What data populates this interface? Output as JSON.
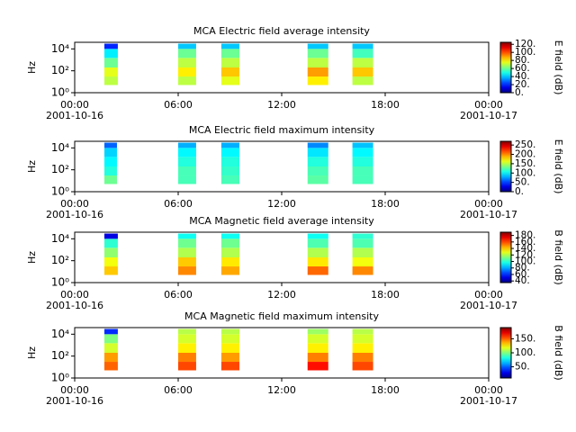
{
  "chart_data": [
    {
      "type": "spectrogram",
      "title": "MCA  Electric field average intensity",
      "ylabel": "Hz",
      "log_y": true,
      "xlim": [
        0,
        24
      ],
      "xticks": [
        {
          "value": 0,
          "label": "00:00"
        },
        {
          "value": 6,
          "label": "06:00"
        },
        {
          "value": 12,
          "label": "12:00"
        },
        {
          "value": 18,
          "label": "18:00"
        },
        {
          "value": 24,
          "label": "00:00"
        }
      ],
      "xtick_dates": [
        {
          "value": 0,
          "label": "2001-10-16"
        },
        {
          "value": 24,
          "label": "2001-10-17"
        }
      ],
      "ylim": [
        1,
        40000
      ],
      "yticks": [
        {
          "value": 1,
          "label": "10⁰"
        },
        {
          "value": 100,
          "label": "10²"
        },
        {
          "value": 10000,
          "label": "10⁴"
        }
      ],
      "bands": [
        5,
        30,
        200,
        1500,
        10000,
        30000
      ],
      "blocks": [
        {
          "start": 1.72,
          "end": 2.5,
          "values": [
            70,
            75,
            60,
            45,
            20
          ]
        },
        {
          "start": 6.0,
          "end": 7.04,
          "values": [
            70,
            80,
            70,
            60,
            40
          ]
        },
        {
          "start": 8.5,
          "end": 9.55,
          "values": [
            75,
            85,
            70,
            60,
            40
          ]
        },
        {
          "start": 13.5,
          "end": 14.7,
          "values": [
            80,
            90,
            70,
            60,
            40
          ]
        },
        {
          "start": 16.1,
          "end": 17.3,
          "values": [
            70,
            85,
            70,
            55,
            40
          ]
        }
      ],
      "clim": [
        0,
        125
      ],
      "cticks": [
        {
          "value": 0,
          "label": "0."
        },
        {
          "value": 20,
          "label": "20."
        },
        {
          "value": 40,
          "label": "40."
        },
        {
          "value": 60,
          "label": "60."
        },
        {
          "value": 80,
          "label": "80."
        },
        {
          "value": 100,
          "label": "100."
        },
        {
          "value": 120,
          "label": "120."
        }
      ],
      "colorbar_label": "E field (dB)"
    },
    {
      "type": "spectrogram",
      "title": "MCA  Electric field maximum intensity",
      "ylabel": "Hz",
      "log_y": true,
      "xlim": [
        0,
        24
      ],
      "xticks": [
        {
          "value": 0,
          "label": "00:00"
        },
        {
          "value": 6,
          "label": "06:00"
        },
        {
          "value": 12,
          "label": "12:00"
        },
        {
          "value": 18,
          "label": "18:00"
        },
        {
          "value": 24,
          "label": "00:00"
        }
      ],
      "xtick_dates": [
        {
          "value": 0,
          "label": "2001-10-16"
        },
        {
          "value": 24,
          "label": "2001-10-17"
        }
      ],
      "ylim": [
        1,
        40000
      ],
      "yticks": [
        {
          "value": 1,
          "label": "10⁰"
        },
        {
          "value": 100,
          "label": "10²"
        },
        {
          "value": 10000,
          "label": "10⁴"
        }
      ],
      "bands": [
        5,
        30,
        200,
        1500,
        10000,
        30000
      ],
      "blocks": [
        {
          "start": 1.72,
          "end": 2.45,
          "values": [
            130,
            110,
            100,
            90,
            60
          ]
        },
        {
          "start": 6.0,
          "end": 7.04,
          "values": [
            120,
            120,
            110,
            100,
            80
          ]
        },
        {
          "start": 8.5,
          "end": 9.55,
          "values": [
            120,
            115,
            110,
            100,
            80
          ]
        },
        {
          "start": 13.5,
          "end": 14.7,
          "values": [
            125,
            120,
            110,
            95,
            70
          ]
        },
        {
          "start": 16.1,
          "end": 17.3,
          "values": [
            120,
            120,
            110,
            100,
            85
          ]
        }
      ],
      "clim": [
        0,
        270
      ],
      "cticks": [
        {
          "value": 0,
          "label": "0."
        },
        {
          "value": 50,
          "label": "50."
        },
        {
          "value": 100,
          "label": "100."
        },
        {
          "value": 150,
          "label": "150."
        },
        {
          "value": 200,
          "label": "200."
        },
        {
          "value": 250,
          "label": "250."
        }
      ],
      "colorbar_label": "E field (dB)"
    },
    {
      "type": "spectrogram",
      "title": "MCA  Magnetic field average intensity",
      "ylabel": "Hz",
      "log_y": true,
      "xlim": [
        0,
        24
      ],
      "xticks": [
        {
          "value": 0,
          "label": "00:00"
        },
        {
          "value": 6,
          "label": "06:00"
        },
        {
          "value": 12,
          "label": "12:00"
        },
        {
          "value": 18,
          "label": "18:00"
        },
        {
          "value": 24,
          "label": "00:00"
        }
      ],
      "xtick_dates": [
        {
          "value": 0,
          "label": "2001-10-16"
        },
        {
          "value": 24,
          "label": "2001-10-17"
        }
      ],
      "ylim": [
        1,
        40000
      ],
      "yticks": [
        {
          "value": 1,
          "label": "10⁰"
        },
        {
          "value": 100,
          "label": "10²"
        },
        {
          "value": 10000,
          "label": "10⁴"
        }
      ],
      "bands": [
        5,
        30,
        200,
        1500,
        10000,
        30000
      ],
      "blocks": [
        {
          "start": 1.72,
          "end": 2.5,
          "values": [
            140,
            130,
            115,
            100,
            50
          ]
        },
        {
          "start": 6.0,
          "end": 7.04,
          "values": [
            150,
            140,
            120,
            110,
            95
          ]
        },
        {
          "start": 8.5,
          "end": 9.55,
          "values": [
            145,
            135,
            120,
            110,
            95
          ]
        },
        {
          "start": 13.5,
          "end": 14.7,
          "values": [
            155,
            135,
            120,
            105,
            95
          ]
        },
        {
          "start": 16.1,
          "end": 17.3,
          "values": [
            150,
            130,
            120,
            105,
            100
          ]
        }
      ],
      "clim": [
        35,
        190
      ],
      "cticks": [
        {
          "value": 40,
          "label": "40."
        },
        {
          "value": 60,
          "label": "60."
        },
        {
          "value": 80,
          "label": "80."
        },
        {
          "value": 100,
          "label": "100."
        },
        {
          "value": 120,
          "label": "120."
        },
        {
          "value": 140,
          "label": "140."
        },
        {
          "value": 160,
          "label": "160."
        },
        {
          "value": 180,
          "label": "180."
        }
      ],
      "colorbar_label": "B field (dB)"
    },
    {
      "type": "spectrogram",
      "title": "MCA  Magnetic field maximum intensity",
      "ylabel": "Hz",
      "log_y": true,
      "xlim": [
        0,
        24
      ],
      "xticks": [
        {
          "value": 0,
          "label": "00:00"
        },
        {
          "value": 6,
          "label": "06:00"
        },
        {
          "value": 12,
          "label": "12:00"
        },
        {
          "value": 18,
          "label": "18:00"
        },
        {
          "value": 24,
          "label": "00:00"
        }
      ],
      "xtick_dates": [
        {
          "value": 0,
          "label": "2001-10-16"
        },
        {
          "value": 24,
          "label": "2001-10-17"
        }
      ],
      "ylim": [
        1,
        40000
      ],
      "yticks": [
        {
          "value": 1,
          "label": "10⁰"
        },
        {
          "value": 100,
          "label": "10²"
        },
        {
          "value": 10000,
          "label": "10⁴"
        }
      ],
      "bands": [
        5,
        30,
        200,
        1500,
        10000,
        30000
      ],
      "blocks": [
        {
          "start": 1.72,
          "end": 2.5,
          "values": [
            150,
            140,
            115,
            100,
            40
          ]
        },
        {
          "start": 6.0,
          "end": 7.04,
          "values": [
            155,
            145,
            125,
            115,
            110
          ]
        },
        {
          "start": 8.5,
          "end": 9.55,
          "values": [
            155,
            140,
            125,
            115,
            110
          ]
        },
        {
          "start": 13.5,
          "end": 14.7,
          "values": [
            165,
            145,
            125,
            115,
            105
          ]
        },
        {
          "start": 16.1,
          "end": 17.3,
          "values": [
            155,
            145,
            125,
            115,
            110
          ]
        }
      ],
      "clim": [
        10,
        190
      ],
      "cticks": [
        {
          "value": 50,
          "label": "50."
        },
        {
          "value": 100,
          "label": "100."
        },
        {
          "value": 150,
          "label": "150."
        }
      ],
      "colorbar_label": "B field (dB)"
    }
  ]
}
